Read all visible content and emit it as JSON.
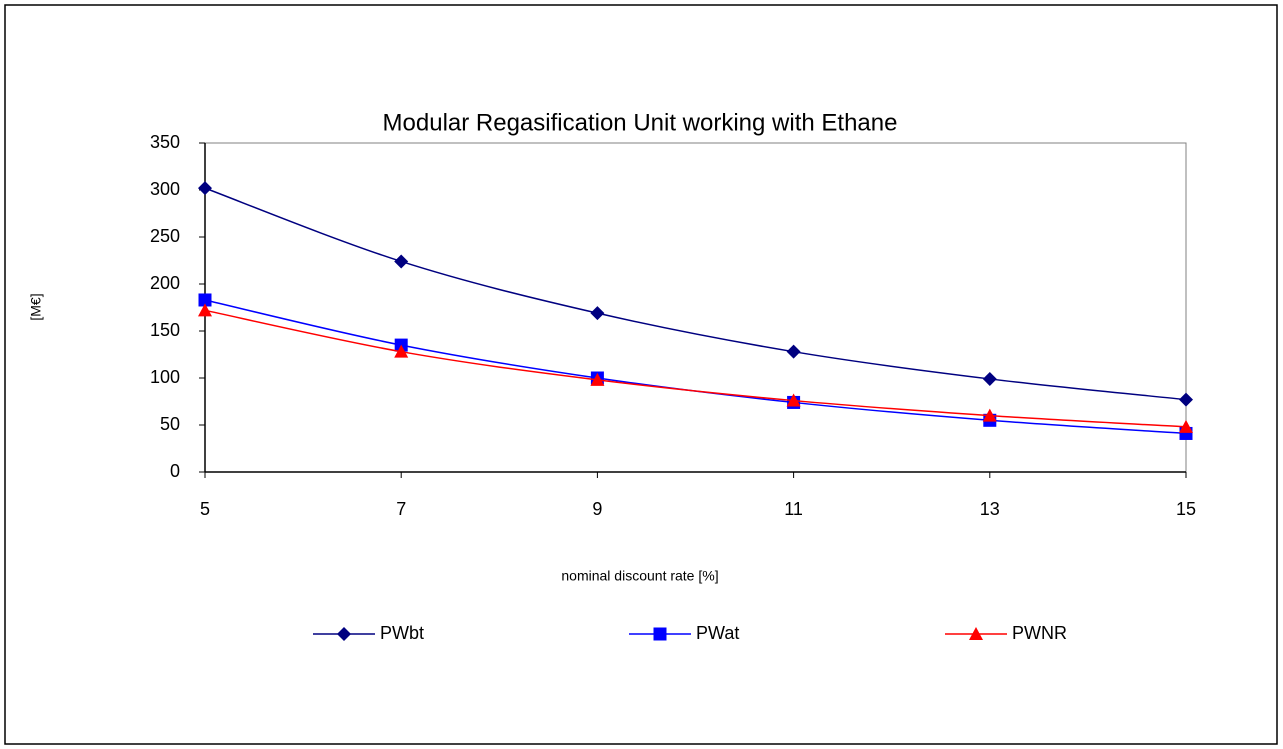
{
  "chart_data": {
    "type": "line",
    "title": "Modular Regasification Unit working with Ethane",
    "x_label": "nominal discount rate [%]",
    "y_label": "[M€]",
    "x": [
      5,
      7,
      9,
      11,
      13,
      15
    ],
    "series": [
      {
        "name": "PWbt",
        "color": "#000080",
        "marker": "diamond",
        "values": [
          302,
          224,
          169,
          128,
          99,
          77
        ]
      },
      {
        "name": "PWat",
        "color": "#0000ff",
        "marker": "square",
        "values": [
          183,
          135,
          100,
          74,
          55,
          41
        ]
      },
      {
        "name": "PWNR",
        "color": "#ff0000",
        "marker": "triangle",
        "values": [
          172,
          128,
          98,
          76,
          60,
          48
        ]
      }
    ],
    "xlim": [
      5,
      15
    ],
    "xticks": [
      5,
      7,
      9,
      11,
      13,
      15
    ],
    "ylim": [
      0,
      350
    ],
    "yticks": [
      0,
      50,
      100,
      150,
      200,
      250,
      300,
      350
    ],
    "grid": false,
    "legend": "bottom"
  }
}
